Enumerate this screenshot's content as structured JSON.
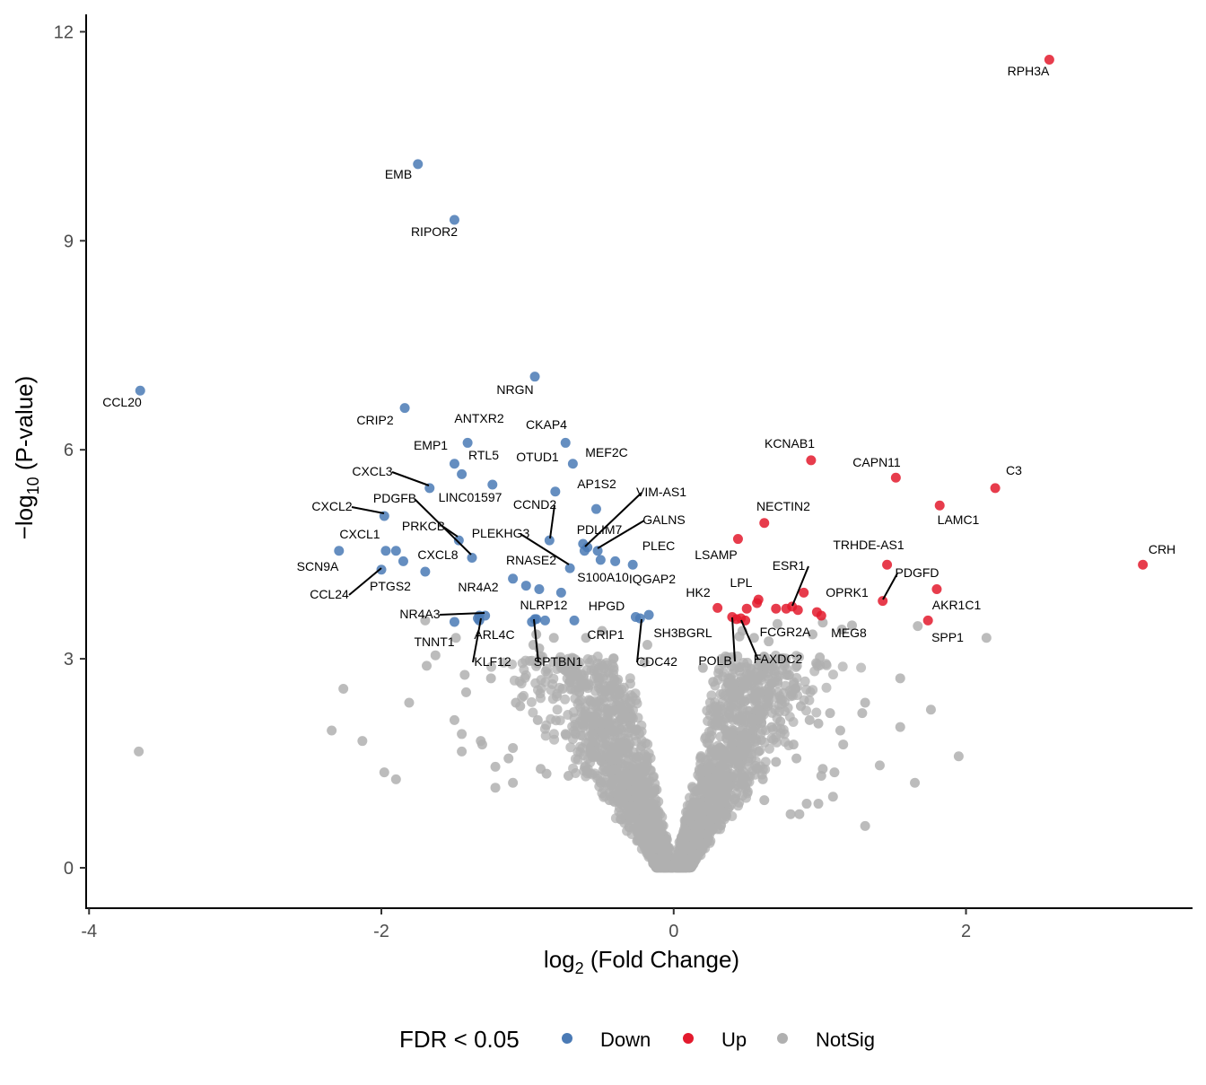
{
  "chart_data": {
    "type": "scatter",
    "subtype": "volcano",
    "xlabel_main": "log",
    "xlabel_sub": "2",
    "xlabel_rest": " (Fold Change)",
    "ylabel_main": "−log",
    "ylabel_sub": "10",
    "ylabel_rest": " (P-value)",
    "xlim": [
      -4.02,
      3.55
    ],
    "ylim": [
      -0.58,
      12.25
    ],
    "x_ticks": [
      -4,
      -2,
      0,
      2
    ],
    "y_ticks": [
      0,
      3,
      6,
      9,
      12
    ],
    "grid": false,
    "legend_position": "bottom",
    "legend": {
      "title": "FDR < 0.05",
      "items": [
        {
          "label": "Down",
          "color": "#4a7ab5"
        },
        {
          "label": "Up",
          "color": "#e31a2d"
        },
        {
          "label": "NotSig",
          "color": "#b0b0b0"
        }
      ]
    },
    "colors": {
      "Down": "#4a7ab5",
      "Up": "#e31a2d",
      "NotSig": "#b0b0b0"
    },
    "labeled_points": [
      {
        "gene": "RPH3A",
        "x": 2.57,
        "y": 11.6,
        "group": "Up"
      },
      {
        "gene": "EMB",
        "x": -1.75,
        "y": 10.1,
        "group": "Down"
      },
      {
        "gene": "RIPOR2",
        "x": -1.5,
        "y": 9.3,
        "group": "Down"
      },
      {
        "gene": "CCL20",
        "x": -3.65,
        "y": 6.85,
        "group": "Down"
      },
      {
        "gene": "NRGN",
        "x": -0.95,
        "y": 7.05,
        "group": "Down"
      },
      {
        "gene": "CRIP2",
        "x": -1.84,
        "y": 6.6,
        "group": "Down"
      },
      {
        "gene": "ANTXR2",
        "x": -1.41,
        "y": 6.1,
        "group": "Down"
      },
      {
        "gene": "CKAP4",
        "x": -0.74,
        "y": 6.1,
        "group": "Down"
      },
      {
        "gene": "EMP1",
        "x": -1.5,
        "y": 5.8,
        "group": "Down"
      },
      {
        "gene": "RTL5",
        "x": -1.45,
        "y": 5.65,
        "group": "Down"
      },
      {
        "gene": "MEF2C",
        "x": -0.69,
        "y": 5.8,
        "group": "Down"
      },
      {
        "gene": "OTUD1",
        "x": -0.81,
        "y": 5.4,
        "group": "Down"
      },
      {
        "gene": "CXCL3",
        "x": -1.67,
        "y": 5.45,
        "group": "Down"
      },
      {
        "gene": "LINC01597",
        "x": -1.24,
        "y": 5.5,
        "group": "Down"
      },
      {
        "gene": "AP1S2",
        "x": -0.53,
        "y": 5.15,
        "group": "Down"
      },
      {
        "gene": "CXCL2",
        "x": -1.98,
        "y": 5.05,
        "group": "Down"
      },
      {
        "gene": "PDGFB",
        "x": -1.47,
        "y": 4.7,
        "group": "Down"
      },
      {
        "gene": "CCND2",
        "x": -0.85,
        "y": 4.7,
        "group": "Down"
      },
      {
        "gene": "VIM-AS1",
        "x": -0.61,
        "y": 4.55,
        "group": "Down"
      },
      {
        "gene": "GALNS",
        "x": -0.52,
        "y": 4.55,
        "group": "Down"
      },
      {
        "gene": "PRKCB",
        "x": -1.38,
        "y": 4.45,
        "group": "Down"
      },
      {
        "gene": "PLEKHG3",
        "x": -0.71,
        "y": 4.3,
        "group": "Down"
      },
      {
        "gene": "PDLIM7",
        "x": -0.59,
        "y": 4.6,
        "group": "Down"
      },
      {
        "gene": "PLEC",
        "x": -0.28,
        "y": 4.35,
        "group": "Down"
      },
      {
        "gene": "CXCL1",
        "x": -2.29,
        "y": 4.55,
        "group": "Down"
      },
      {
        "gene": "CXCL8",
        "x": -1.7,
        "y": 4.25,
        "group": "Down"
      },
      {
        "gene": "RNASE2",
        "x": -1.1,
        "y": 4.15,
        "group": "Down"
      },
      {
        "gene": "S100A10",
        "x": -0.92,
        "y": 4.0,
        "group": "Down"
      },
      {
        "gene": "IQGAP2",
        "x": -0.4,
        "y": 4.4,
        "group": "Down"
      },
      {
        "gene": "SCN9A",
        "x": -1.9,
        "y": 4.55,
        "group": "Down"
      },
      {
        "gene": "CCL24",
        "x": -2.0,
        "y": 4.28,
        "group": "Down"
      },
      {
        "gene": "PTGS2",
        "x": -1.85,
        "y": 4.4,
        "group": "Down"
      },
      {
        "gene": "NR4A2",
        "x": -1.01,
        "y": 4.05,
        "group": "Down"
      },
      {
        "gene": "NLRP12",
        "x": -0.88,
        "y": 3.55,
        "group": "Down"
      },
      {
        "gene": "HPGD",
        "x": -0.68,
        "y": 3.55,
        "group": "Down"
      },
      {
        "gene": "NR4A3",
        "x": -1.29,
        "y": 3.62,
        "group": "Down"
      },
      {
        "gene": "ARL4C",
        "x": -1.33,
        "y": 3.55,
        "group": "Down"
      },
      {
        "gene": "CRIP1",
        "x": -0.94,
        "y": 3.57,
        "group": "Down"
      },
      {
        "gene": "SH3BGRL",
        "x": -0.17,
        "y": 3.63,
        "group": "Down"
      },
      {
        "gene": "TNNT1",
        "x": -1.5,
        "y": 3.53,
        "group": "Down"
      },
      {
        "gene": "KLF12",
        "x": -1.34,
        "y": 3.58,
        "group": "Down"
      },
      {
        "gene": "SPTBN1",
        "x": -0.97,
        "y": 3.53,
        "group": "Down"
      },
      {
        "gene": "CDC42",
        "x": -0.23,
        "y": 3.58,
        "group": "Down"
      },
      {
        "gene": "KCNAB1",
        "x": 0.94,
        "y": 5.85,
        "group": "Up"
      },
      {
        "gene": "CAPN11",
        "x": 1.52,
        "y": 5.6,
        "group": "Up"
      },
      {
        "gene": "C3",
        "x": 2.2,
        "y": 5.45,
        "group": "Up"
      },
      {
        "gene": "LAMC1",
        "x": 1.82,
        "y": 5.2,
        "group": "Up"
      },
      {
        "gene": "NECTIN2",
        "x": 0.62,
        "y": 4.95,
        "group": "Up"
      },
      {
        "gene": "CRH",
        "x": 3.21,
        "y": 4.35,
        "group": "Up"
      },
      {
        "gene": "LSAMP",
        "x": 0.44,
        "y": 4.72,
        "group": "Up"
      },
      {
        "gene": "TRHDE-AS1",
        "x": 1.46,
        "y": 4.35,
        "group": "Up"
      },
      {
        "gene": "ESR1",
        "x": 0.81,
        "y": 3.75,
        "group": "Up"
      },
      {
        "gene": "PDGFD",
        "x": 1.43,
        "y": 3.83,
        "group": "Up"
      },
      {
        "gene": "LPL",
        "x": 0.58,
        "y": 3.85,
        "group": "Up"
      },
      {
        "gene": "HK2",
        "x": 0.3,
        "y": 3.73,
        "group": "Up"
      },
      {
        "gene": "OPRK1",
        "x": 0.89,
        "y": 3.95,
        "group": "Up"
      },
      {
        "gene": "AKR1C1",
        "x": 1.8,
        "y": 4.0,
        "group": "Up"
      },
      {
        "gene": "FCGR2A",
        "x": 0.7,
        "y": 3.72,
        "group": "Up"
      },
      {
        "gene": "MEG8",
        "x": 1.01,
        "y": 3.62,
        "group": "Up"
      },
      {
        "gene": "POLB",
        "x": 0.4,
        "y": 3.6,
        "group": "Up"
      },
      {
        "gene": "FAXDC2",
        "x": 0.46,
        "y": 3.58,
        "group": "Up"
      },
      {
        "gene": "SPP1",
        "x": 1.74,
        "y": 3.55,
        "group": "Up"
      }
    ],
    "extra_significant_points": [
      {
        "x": -0.62,
        "y": 4.65,
        "group": "Down"
      },
      {
        "x": -1.97,
        "y": 4.55,
        "group": "Down"
      },
      {
        "x": -0.77,
        "y": 3.95,
        "group": "Down"
      },
      {
        "x": -0.5,
        "y": 4.42,
        "group": "Down"
      },
      {
        "x": -1.33,
        "y": 3.62,
        "group": "Down"
      },
      {
        "x": -0.95,
        "y": 3.57,
        "group": "Down"
      },
      {
        "x": -0.26,
        "y": 3.6,
        "group": "Down"
      },
      {
        "x": 0.5,
        "y": 3.72,
        "group": "Up"
      },
      {
        "x": 0.57,
        "y": 3.8,
        "group": "Up"
      },
      {
        "x": 0.77,
        "y": 3.72,
        "group": "Up"
      },
      {
        "x": 0.85,
        "y": 3.7,
        "group": "Up"
      },
      {
        "x": 0.98,
        "y": 3.67,
        "group": "Up"
      },
      {
        "x": 0.43,
        "y": 3.57,
        "group": "Up"
      },
      {
        "x": 0.49,
        "y": 3.55,
        "group": "Up"
      }
    ],
    "notsig_outliers": [
      {
        "x": -3.66,
        "y": 1.67
      },
      {
        "x": -2.34,
        "y": 1.97
      },
      {
        "x": -2.26,
        "y": 2.57
      },
      {
        "x": -2.13,
        "y": 1.82
      },
      {
        "x": -1.98,
        "y": 1.37
      },
      {
        "x": -1.9,
        "y": 1.27
      },
      {
        "x": -1.81,
        "y": 2.37
      },
      {
        "x": -1.7,
        "y": 3.55
      },
      {
        "x": -1.69,
        "y": 2.9
      },
      {
        "x": -1.49,
        "y": 3.3
      },
      {
        "x": -1.43,
        "y": 2.77
      },
      {
        "x": -1.42,
        "y": 2.52
      },
      {
        "x": -1.5,
        "y": 2.12
      },
      {
        "x": -1.45,
        "y": 1.92
      },
      {
        "x": -1.45,
        "y": 1.67
      },
      {
        "x": -1.32,
        "y": 1.82
      },
      {
        "x": -1.31,
        "y": 1.77
      },
      {
        "x": -1.25,
        "y": 2.72
      },
      {
        "x": -1.22,
        "y": 1.45
      },
      {
        "x": -1.22,
        "y": 1.15
      },
      {
        "x": -1.13,
        "y": 1.57
      },
      {
        "x": -1.1,
        "y": 1.72
      },
      {
        "x": -1.1,
        "y": 1.22
      },
      {
        "x": -1.08,
        "y": 2.37
      },
      {
        "x": -1.05,
        "y": 2.32
      },
      {
        "x": -0.96,
        "y": 3.2
      },
      {
        "x": -0.92,
        "y": 3.15
      },
      {
        "x": -0.93,
        "y": 2.12
      },
      {
        "x": -0.91,
        "y": 1.42
      },
      {
        "x": -0.87,
        "y": 1.35
      },
      {
        "x": -0.82,
        "y": 3.3
      },
      {
        "x": -0.76,
        "y": 2.57
      },
      {
        "x": -0.74,
        "y": 1.92
      },
      {
        "x": -0.72,
        "y": 1.32
      },
      {
        "x": -0.64,
        "y": 2.1
      },
      {
        "x": -0.6,
        "y": 3.3
      },
      {
        "x": -0.58,
        "y": 2.62
      },
      {
        "x": -0.56,
        "y": 1.92
      },
      {
        "x": -0.52,
        "y": 2.82
      },
      {
        "x": -0.5,
        "y": 1.22
      },
      {
        "x": -0.49,
        "y": 3.4
      },
      {
        "x": -0.44,
        "y": 0.97
      },
      {
        "x": -0.4,
        "y": 2.45
      },
      {
        "x": -0.4,
        "y": 1.42
      },
      {
        "x": -0.18,
        "y": 3.2
      },
      {
        "x": -0.2,
        "y": 2.95
      },
      {
        "x": -0.22,
        "y": 1.45
      },
      {
        "x": 0.2,
        "y": 2.87
      },
      {
        "x": 0.27,
        "y": 2.67
      },
      {
        "x": 0.35,
        "y": 2.47
      },
      {
        "x": 0.37,
        "y": 3.02
      },
      {
        "x": 0.41,
        "y": 1.97
      },
      {
        "x": 0.45,
        "y": 3.32
      },
      {
        "x": 0.47,
        "y": 3.4
      },
      {
        "x": 0.48,
        "y": 1.62
      },
      {
        "x": 0.52,
        "y": 2.77
      },
      {
        "x": 0.55,
        "y": 3.3
      },
      {
        "x": 0.58,
        "y": 1.67
      },
      {
        "x": 0.6,
        "y": 2.52
      },
      {
        "x": 0.61,
        "y": 1.27
      },
      {
        "x": 0.62,
        "y": 0.97
      },
      {
        "x": 0.65,
        "y": 3.25
      },
      {
        "x": 0.67,
        "y": 2.02
      },
      {
        "x": 0.7,
        "y": 1.52
      },
      {
        "x": 0.71,
        "y": 3.5
      },
      {
        "x": 0.73,
        "y": 2.1
      },
      {
        "x": 0.79,
        "y": 2.77
      },
      {
        "x": 0.8,
        "y": 0.77
      },
      {
        "x": 0.82,
        "y": 1.77
      },
      {
        "x": 0.83,
        "y": 2.57
      },
      {
        "x": 0.84,
        "y": 1.57
      },
      {
        "x": 0.86,
        "y": 0.77
      },
      {
        "x": 0.87,
        "y": 2.32
      },
      {
        "x": 0.91,
        "y": 0.92
      },
      {
        "x": 0.93,
        "y": 2.12
      },
      {
        "x": 0.95,
        "y": 3.35
      },
      {
        "x": 0.99,
        "y": 0.92
      },
      {
        "x": 0.99,
        "y": 2.07
      },
      {
        "x": 1.0,
        "y": 3.02
      },
      {
        "x": 1.01,
        "y": 1.32
      },
      {
        "x": 1.02,
        "y": 1.42
      },
      {
        "x": 1.02,
        "y": 3.52
      },
      {
        "x": 1.09,
        "y": 1.02
      },
      {
        "x": 1.07,
        "y": 2.22
      },
      {
        "x": 1.1,
        "y": 1.37
      },
      {
        "x": 1.14,
        "y": 1.97
      },
      {
        "x": 1.15,
        "y": 3.42
      },
      {
        "x": 1.16,
        "y": 1.77
      },
      {
        "x": 1.22,
        "y": 3.48
      },
      {
        "x": 1.29,
        "y": 2.22
      },
      {
        "x": 1.31,
        "y": 2.37
      },
      {
        "x": 1.31,
        "y": 0.6
      },
      {
        "x": 1.41,
        "y": 1.47
      },
      {
        "x": 1.55,
        "y": 2.72
      },
      {
        "x": 1.55,
        "y": 2.02
      },
      {
        "x": 1.65,
        "y": 1.22
      },
      {
        "x": 1.67,
        "y": 3.47
      },
      {
        "x": 1.76,
        "y": 2.27
      },
      {
        "x": 2.14,
        "y": 3.3
      },
      {
        "x": -1.63,
        "y": 3.05
      },
      {
        "x": -0.94,
        "y": 3.35
      },
      {
        "x": 1.95,
        "y": 1.6
      }
    ],
    "notsig_cloud": {
      "description": "dense volcano body",
      "x_range": [
        -0.85,
        0.9
      ],
      "y_range": [
        0,
        3.1
      ]
    }
  }
}
